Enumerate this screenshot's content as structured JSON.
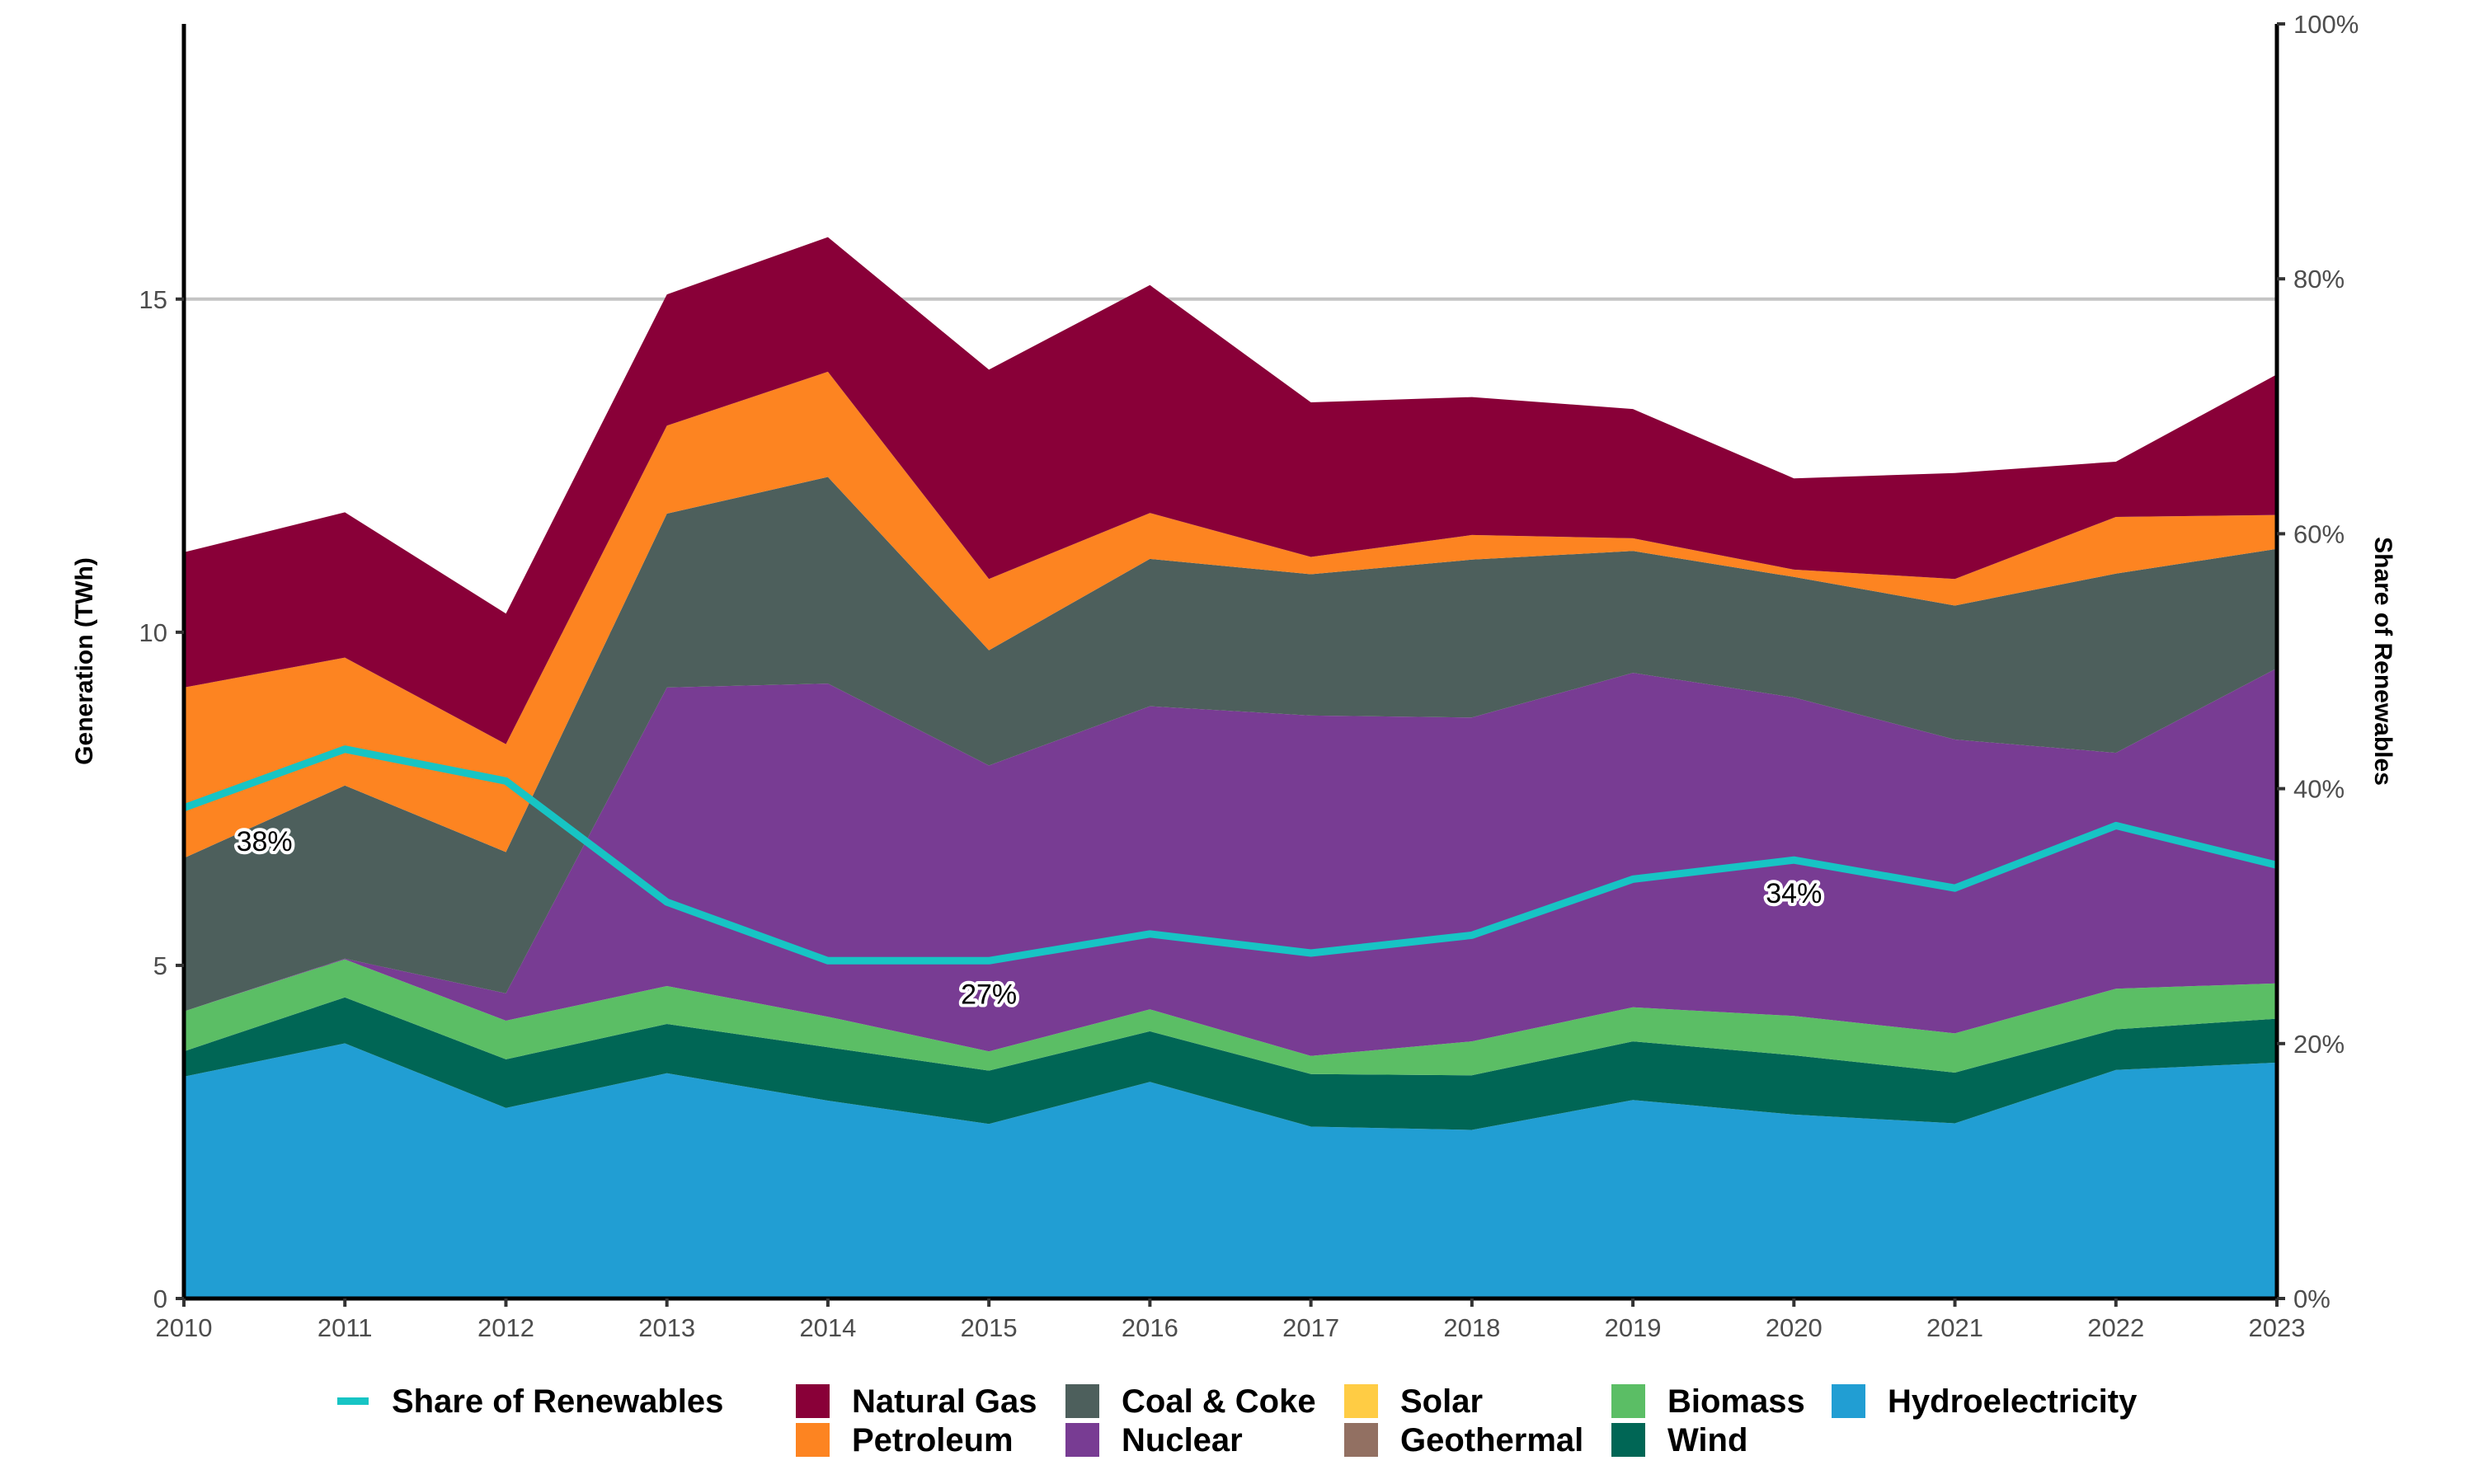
{
  "chart_data": {
    "type": "area",
    "stacked": true,
    "title": "",
    "xlabel": "",
    "ylabel": "Generation (TWh)",
    "y2label": "Share of Renewables",
    "x": [
      2010,
      2011,
      2012,
      2013,
      2014,
      2015,
      2016,
      2017,
      2018,
      2019,
      2020,
      2021,
      2022,
      2023
    ],
    "x_ticks": [
      "2010",
      "2011",
      "2012",
      "2013",
      "2014",
      "2015",
      "2016",
      "2017",
      "2018",
      "2019",
      "2020",
      "2021",
      "2022",
      "2023"
    ],
    "ylim": [
      0,
      19.13
    ],
    "y_ticks": [
      0,
      5,
      10,
      15
    ],
    "y_tick_labels": [
      "0",
      "5",
      "10",
      "15"
    ],
    "y2lim": [
      0,
      100
    ],
    "y2_ticks": [
      0,
      20,
      40,
      60,
      80,
      100
    ],
    "y2_tick_labels": [
      "0%",
      "20%",
      "40%",
      "60%",
      "80%",
      "100%"
    ],
    "grid": "horizontal major",
    "legend_position": "bottom",
    "stack_order_bottom_to_top": [
      "Hydroelectricity",
      "Wind",
      "Biomass",
      "Geothermal",
      "Solar",
      "Nuclear",
      "Coal & Coke",
      "Petroleum",
      "Natural Gas"
    ],
    "series": [
      {
        "name": "Hydroelectricity",
        "color": "#219ED3",
        "values": [
          3.33,
          3.83,
          2.86,
          3.38,
          2.97,
          2.62,
          3.25,
          2.58,
          2.53,
          2.98,
          2.76,
          2.63,
          3.43,
          3.54
        ]
      },
      {
        "name": "Wind",
        "color": "#006655",
        "values": [
          0.38,
          0.69,
          0.73,
          0.74,
          0.8,
          0.8,
          0.76,
          0.79,
          0.82,
          0.88,
          0.89,
          0.76,
          0.61,
          0.66
        ]
      },
      {
        "name": "Biomass",
        "color": "#5BBE65",
        "values": [
          0.6,
          0.57,
          0.58,
          0.57,
          0.46,
          0.29,
          0.33,
          0.27,
          0.51,
          0.51,
          0.59,
          0.59,
          0.61,
          0.53
        ]
      },
      {
        "name": "Geothermal",
        "color": "#927062",
        "values": [
          0,
          0,
          0,
          0,
          0,
          0,
          0,
          0,
          0,
          0,
          0,
          0,
          0,
          0
        ]
      },
      {
        "name": "Solar",
        "color": "#FFCC44",
        "values": [
          0,
          0,
          0,
          0,
          0,
          0,
          0,
          0,
          0,
          0,
          0,
          0,
          0,
          0
        ]
      },
      {
        "name": "Nuclear",
        "color": "#783C93",
        "values": [
          0,
          0.01,
          0.41,
          4.48,
          5.0,
          4.29,
          4.55,
          5.11,
          4.86,
          5.02,
          4.78,
          4.41,
          3.54,
          4.73
        ]
      },
      {
        "name": "Coal & Coke",
        "color": "#4D5F5C",
        "values": [
          2.3,
          2.6,
          2.12,
          2.61,
          3.1,
          1.73,
          2.21,
          2.12,
          2.37,
          1.83,
          1.81,
          2.01,
          2.69,
          1.79
        ]
      },
      {
        "name": "Petroleum",
        "color": "#FD8421",
        "values": [
          2.56,
          1.92,
          1.62,
          1.32,
          1.58,
          1.07,
          0.69,
          0.26,
          0.37,
          0.19,
          0.11,
          0.4,
          0.85,
          0.51
        ]
      },
      {
        "name": "Natural Gas",
        "color": "#890038",
        "values": [
          2.03,
          2.18,
          1.96,
          1.97,
          2.02,
          3.14,
          3.42,
          2.32,
          2.07,
          1.94,
          1.37,
          1.59,
          0.83,
          2.11
        ]
      }
    ],
    "line_series": {
      "name": "Share of Renewables",
      "axis": "right",
      "unit": "%",
      "color": "#17C4C4",
      "values": [
        38.5,
        43.1,
        40.6,
        31.1,
        26.5,
        26.5,
        28.6,
        27.1,
        28.5,
        32.9,
        34.4,
        32.2,
        37.1,
        34.0
      ]
    },
    "annotations": [
      {
        "text": "38%",
        "x": 2010.5,
        "share": 38.5
      },
      {
        "text": "27%",
        "x": 2015,
        "share": 26.5
      },
      {
        "text": "34%",
        "x": 2020,
        "share": 34.4
      }
    ],
    "legend": {
      "row1": [
        {
          "name": "Share of Renewables",
          "key": "line",
          "color": "#17C4C4"
        },
        {
          "name": "Natural Gas",
          "key": "box",
          "color": "#890038"
        },
        {
          "name": "Coal & Coke",
          "key": "box",
          "color": "#4D5F5C"
        },
        {
          "name": "Solar",
          "key": "box",
          "color": "#FFCC44"
        },
        {
          "name": "Biomass",
          "key": "box",
          "color": "#5BBE65"
        },
        {
          "name": "Hydroelectricity",
          "key": "box",
          "color": "#219ED3"
        }
      ],
      "row2": [
        {
          "name": "Petroleum",
          "key": "box",
          "color": "#FD8421"
        },
        {
          "name": "Nuclear",
          "key": "box",
          "color": "#783C93"
        },
        {
          "name": "Geothermal",
          "key": "box",
          "color": "#927062"
        },
        {
          "name": "Wind",
          "key": "box",
          "color": "#006655"
        }
      ]
    }
  }
}
